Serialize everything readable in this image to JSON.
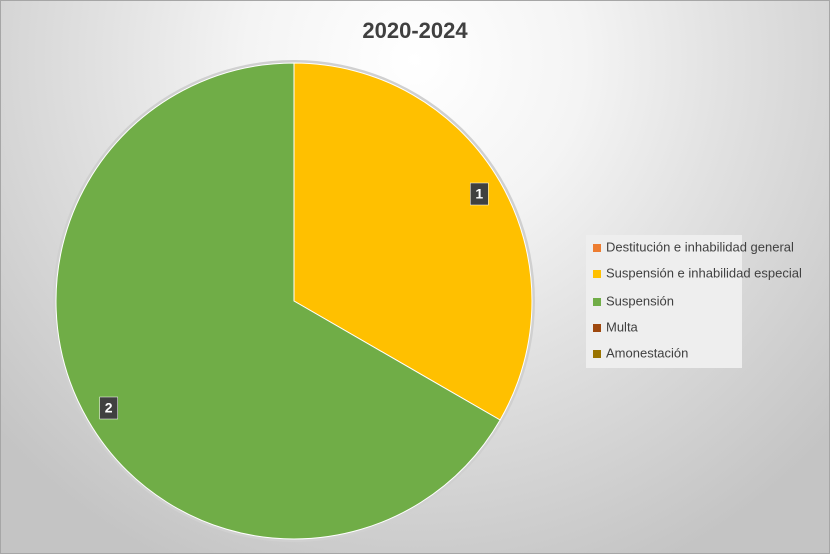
{
  "chart_data": {
    "type": "pie",
    "title": "2020-2024",
    "categories": [
      "Destitución e inhabilidad general",
      "Suspensión e inhabilidad especial",
      "Suspensión",
      "Multa",
      "Amonestación"
    ],
    "values": [
      0,
      1,
      2,
      0,
      0
    ],
    "colors": [
      "#ed7d31",
      "#ffc000",
      "#70ad47",
      "#9e480e",
      "#997300"
    ],
    "legend": "right"
  }
}
